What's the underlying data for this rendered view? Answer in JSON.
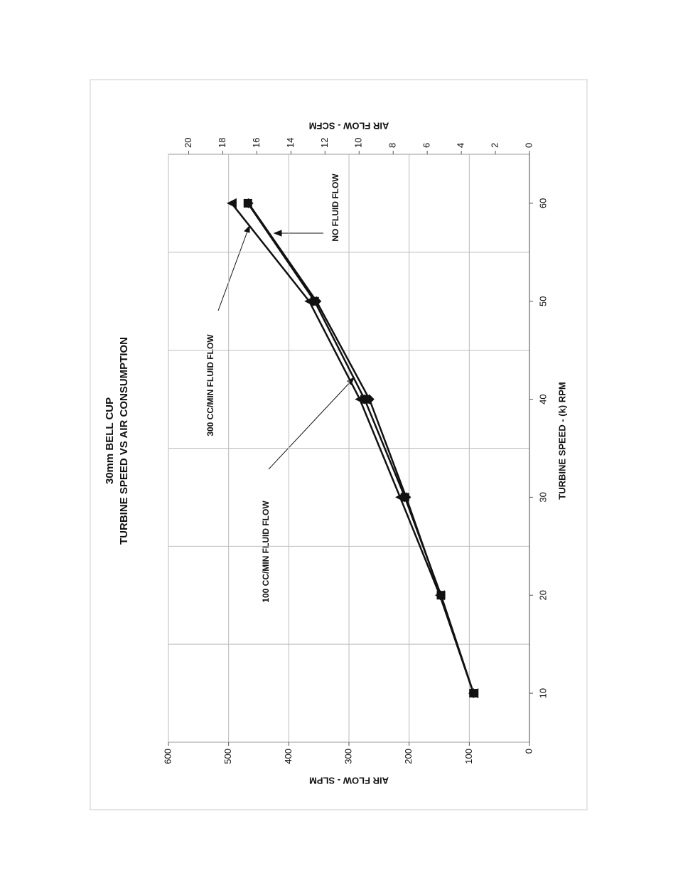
{
  "chart_data": {
    "type": "line",
    "title": [
      "30mm BELL CUP",
      "TURBINE SPEED VS  AIR CONSUMPTION"
    ],
    "x_label": "TURBINE SPEED - (k) RPM",
    "y_label": "AIR FLOW - SLPM",
    "y2_label": "AIR FLOW - SCFM",
    "x": [
      10,
      20,
      30,
      40,
      50,
      60
    ],
    "series": [
      {
        "name": "NO FLUID FLOW",
        "color": "#111111",
        "marker": "diamond",
        "values": [
          93,
          148,
          205,
          266,
          354,
          467
        ]
      },
      {
        "name": "100 CC/MIN FLUID FLOW",
        "color": "#111111",
        "marker": "square",
        "values": [
          93,
          147,
          207,
          274,
          357,
          468
        ]
      },
      {
        "name": "300 CC/MIN FLUID FLOW",
        "color": "#111111",
        "marker": "triangle",
        "values": [
          93,
          149,
          215,
          282,
          366,
          495
        ]
      }
    ],
    "xlim": [
      5,
      65
    ],
    "xticks": [
      10,
      20,
      30,
      40,
      50,
      60
    ],
    "ylim": [
      0,
      600
    ],
    "yticks": [
      0,
      100,
      200,
      300,
      400,
      500,
      600
    ],
    "y2lim": [
      0,
      21.19
    ],
    "y2ticks": [
      0,
      2,
      4,
      6,
      8,
      10,
      12,
      14,
      16,
      18,
      20
    ],
    "grid": true
  }
}
